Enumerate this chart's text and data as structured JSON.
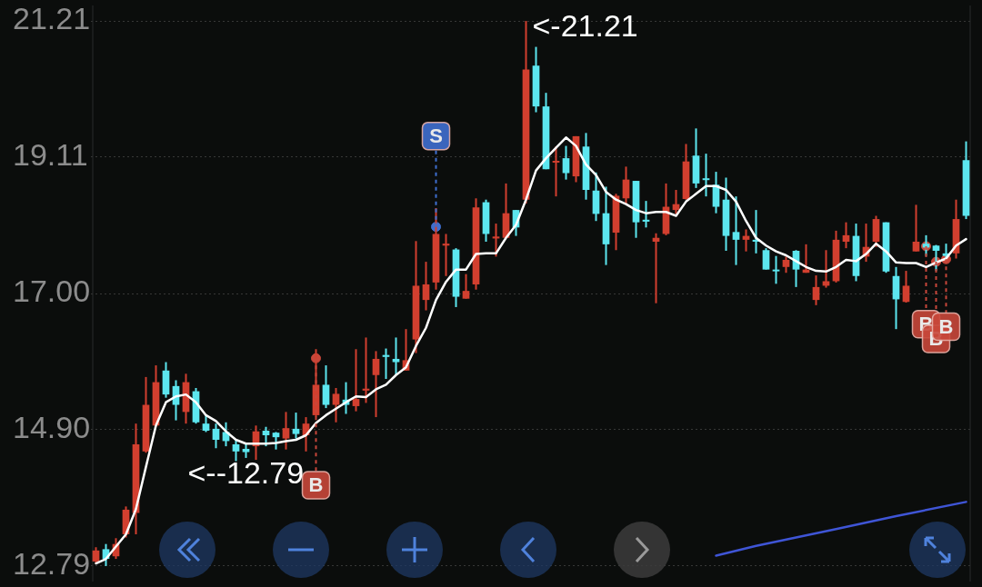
{
  "chart_data": {
    "type": "candlestick",
    "tick_labels": "y",
    "grid": "y",
    "ylim": [
      12.55,
      21.45
    ],
    "yticks": [
      12.79,
      {
        "value": 14.9,
        "label": "14.90"
      },
      {
        "value": 17,
        "label": "17.00"
      },
      19.11,
      21.21
    ],
    "annotations": [
      "<-21.21",
      "<--12.79"
    ],
    "categories": [
      null,
      null,
      null,
      null,
      null,
      null,
      null,
      null,
      null,
      null,
      null,
      null,
      null,
      null,
      null,
      null,
      null,
      null,
      null,
      null,
      null,
      null,
      null,
      null,
      null,
      null,
      null,
      null,
      null,
      null,
      null,
      null,
      null,
      null,
      null,
      null,
      null,
      null,
      null,
      null,
      null,
      null,
      null,
      null,
      null,
      null,
      null,
      null,
      null,
      null,
      null,
      null,
      null,
      null,
      null,
      null,
      null,
      null,
      null,
      null,
      null,
      null,
      null,
      null,
      null,
      null,
      null,
      null,
      null,
      null,
      null,
      null,
      null,
      null,
      null,
      null,
      null,
      null,
      null,
      null,
      null,
      null,
      null,
      null,
      null,
      null,
      null,
      null
    ],
    "ohlc": [
      [
        12.86,
        13.08,
        12.83,
        13.03
      ],
      [
        13.05,
        13.13,
        12.79,
        12.9
      ],
      [
        12.94,
        13.22,
        12.9,
        13.13
      ],
      [
        13.28,
        13.71,
        13.23,
        13.66
      ],
      [
        13.61,
        14.99,
        13.28,
        14.67
      ],
      [
        14.56,
        15.71,
        14.54,
        15.28
      ],
      [
        14.96,
        15.89,
        14.94,
        15.63
      ],
      [
        15.81,
        15.94,
        15.39,
        15.44
      ],
      [
        15.57,
        15.66,
        15.04,
        15.28
      ],
      [
        15.17,
        15.76,
        14.99,
        15.63
      ],
      [
        15.49,
        15.54,
        14.99,
        15.01
      ],
      [
        14.99,
        15.12,
        14.86,
        14.88
      ],
      [
        14.91,
        14.99,
        14.61,
        14.74
      ],
      [
        14.86,
        15.01,
        14.64,
        14.72
      ],
      [
        14.67,
        14.74,
        14.41,
        14.56
      ],
      [
        14.6,
        14.67,
        14.46,
        14.55
      ],
      [
        14.64,
        14.96,
        14.43,
        14.87
      ],
      [
        14.88,
        14.94,
        14.64,
        14.81
      ],
      [
        14.85,
        14.86,
        14.59,
        14.78
      ],
      [
        14.76,
        15.17,
        14.59,
        14.92
      ],
      [
        14.91,
        15.16,
        14.76,
        14.83
      ],
      [
        14.81,
        15.09,
        14.56,
        14.99
      ],
      [
        15.12,
        16.14,
        15.09,
        15.59
      ],
      [
        15.59,
        15.89,
        15.23,
        15.28
      ],
      [
        15.28,
        15.54,
        15.01,
        15.45
      ],
      [
        15.36,
        15.63,
        15.14,
        15.28
      ],
      [
        15.26,
        16.14,
        15.18,
        15.37
      ],
      [
        15.5,
        16.32,
        15.31,
        15.53
      ],
      [
        15.74,
        16.11,
        15.09,
        15.99
      ],
      [
        16.05,
        16.15,
        15.68,
        16.02
      ],
      [
        15.99,
        16.32,
        15.74,
        15.94
      ],
      [
        15.81,
        16.45,
        15.81,
        15.97
      ],
      [
        16.29,
        17.81,
        16.08,
        17.12
      ],
      [
        16.9,
        17.49,
        16.74,
        17.14
      ],
      [
        17.17,
        18.32,
        17.06,
        17.92
      ],
      [
        17.74,
        17.92,
        17.27,
        17.77
      ],
      [
        17.68,
        17.7,
        16.79,
        16.95
      ],
      [
        16.92,
        17.3,
        16.92,
        17.04
      ],
      [
        17.14,
        18.47,
        17.06,
        18.33
      ],
      [
        18.41,
        18.45,
        17.8,
        17.92
      ],
      [
        17.85,
        18.08,
        17.57,
        17.88
      ],
      [
        17.86,
        18.7,
        17.86,
        18.24
      ],
      [
        18.29,
        18.29,
        17.89,
        18.02
      ],
      [
        18.45,
        21.21,
        18.39,
        20.46
      ],
      [
        20.52,
        20.81,
        19.8,
        19.89
      ],
      [
        19.89,
        20.1,
        18.92,
        18.92
      ],
      [
        19.04,
        19.27,
        18.5,
        19.05
      ],
      [
        19.09,
        19.28,
        18.76,
        18.86
      ],
      [
        18.81,
        19.43,
        18.72,
        19.43
      ],
      [
        19.27,
        19.48,
        18.45,
        18.6
      ],
      [
        18.59,
        18.87,
        18.12,
        18.23
      ],
      [
        18.24,
        18.65,
        17.44,
        17.76
      ],
      [
        17.94,
        18.54,
        17.67,
        18.51
      ],
      [
        18.47,
        18.96,
        18.39,
        18.76
      ],
      [
        18.74,
        18.74,
        17.86,
        18.1
      ],
      [
        18.14,
        18.43,
        18.02,
        18.11
      ],
      [
        17.8,
        17.93,
        16.85,
        17.86
      ],
      [
        17.92,
        18.7,
        17.9,
        18.34
      ],
      [
        18.29,
        18.6,
        18.23,
        18.38
      ],
      [
        18.46,
        19.31,
        18.45,
        19.04
      ],
      [
        19.13,
        19.55,
        18.63,
        18.7
      ],
      [
        18.78,
        19.16,
        18.5,
        18.76
      ],
      [
        18.68,
        18.88,
        18.24,
        18.34
      ],
      [
        18.45,
        18.79,
        17.66,
        17.89
      ],
      [
        17.95,
        18.5,
        17.44,
        17.83
      ],
      [
        17.83,
        17.99,
        17.65,
        17.89
      ],
      [
        17.83,
        18.29,
        17.62,
        17.8
      ],
      [
        17.67,
        17.7,
        17.37,
        17.37
      ],
      [
        17.37,
        17.58,
        17.15,
        17.36
      ],
      [
        17.41,
        17.57,
        17.32,
        17.52
      ],
      [
        17.66,
        17.67,
        17.1,
        17.37
      ],
      [
        17.32,
        17.76,
        17.32,
        17.37
      ],
      [
        16.9,
        17.28,
        16.82,
        17.1
      ],
      [
        17.12,
        17.67,
        17.09,
        17.19
      ],
      [
        17.19,
        17.97,
        17.17,
        17.83
      ],
      [
        17.8,
        18.1,
        17.7,
        17.9
      ],
      [
        17.89,
        18.08,
        17.19,
        17.27
      ],
      [
        17.57,
        18.08,
        17.49,
        17.72
      ],
      [
        17.8,
        18.2,
        17.72,
        18.15
      ],
      [
        18.1,
        18.1,
        17.32,
        17.34
      ],
      [
        17.27,
        17.41,
        16.45,
        16.91
      ],
      [
        16.87,
        17.35,
        16.86,
        17.12
      ],
      [
        17.65,
        18.37,
        17.65,
        17.8
      ],
      [
        17.77,
        17.9,
        17.58,
        17.71
      ],
      [
        17.74,
        17.75,
        17.35,
        17.66
      ],
      [
        17.62,
        17.77,
        17.54,
        17.58
      ],
      [
        17.62,
        18.45,
        17.54,
        18.15
      ],
      [
        19.06,
        19.35,
        18.15,
        18.2
      ]
    ],
    "colors": [
      "#d23f2f",
      "#5ce6ef",
      "#d23f2f",
      "#d23f2f",
      "#d23f2f",
      "#d23f2f",
      "#d23f2f",
      "#5ce6ef",
      "#5ce6ef",
      "#d23f2f",
      "#5ce6ef",
      "#5ce6ef",
      "#5ce6ef",
      "#5ce6ef",
      "#5ce6ef",
      "#5ce6ef",
      "#d23f2f",
      "#5ce6ef",
      "#5ce6ef",
      "#d23f2f",
      "#5ce6ef",
      "#d23f2f",
      "#d23f2f",
      "#5ce6ef",
      "#d23f2f",
      "#5ce6ef",
      "#d23f2f",
      "#d23f2f",
      "#d23f2f",
      "#5ce6ef",
      "#5ce6ef",
      "#d23f2f",
      "#d23f2f",
      "#d23f2f",
      "#d23f2f",
      "#d23f2f",
      "#5ce6ef",
      "#d23f2f",
      "#d23f2f",
      "#5ce6ef",
      "#d23f2f",
      "#d23f2f",
      "#5ce6ef",
      "#d23f2f",
      "#5ce6ef",
      "#5ce6ef",
      "#d23f2f",
      "#5ce6ef",
      "#d23f2f",
      "#5ce6ef",
      "#5ce6ef",
      "#5ce6ef",
      "#d23f2f",
      "#d23f2f",
      "#5ce6ef",
      "#5ce6ef",
      "#d23f2f",
      "#d23f2f",
      "#d23f2f",
      "#d23f2f",
      "#5ce6ef",
      "#5ce6ef",
      "#5ce6ef",
      "#5ce6ef",
      "#5ce6ef",
      "#d23f2f",
      "#5ce6ef",
      "#5ce6ef",
      "#5ce6ef",
      "#d23f2f",
      "#5ce6ef",
      "#d23f2f",
      "#d23f2f",
      "#d23f2f",
      "#d23f2f",
      "#d23f2f",
      "#5ce6ef",
      "#d23f2f",
      "#d23f2f",
      "#5ce6ef",
      "#5ce6ef",
      "#d23f2f",
      "#d23f2f",
      "#5ce6ef",
      "#5ce6ef",
      "#5ce6ef",
      "#d23f2f",
      "#5ce6ef"
    ],
    "series": [
      {
        "type": "line",
        "color": "#ffffff",
        "values": [
          12.83,
          12.9,
          13.09,
          13.28,
          13.67,
          14.32,
          14.96,
          15.32,
          15.41,
          15.44,
          15.32,
          15.12,
          15.03,
          14.87,
          14.74,
          14.68,
          14.68,
          14.68,
          14.69,
          14.72,
          14.74,
          14.81,
          15.0,
          15.12,
          15.22,
          15.32,
          15.41,
          15.4,
          15.52,
          15.59,
          15.74,
          15.86,
          16.19,
          16.47,
          16.9,
          17.18,
          17.37,
          17.37,
          17.61,
          17.62,
          17.62,
          17.86,
          18.06,
          18.45,
          18.9,
          19.09,
          19.25,
          19.41,
          19.28,
          18.99,
          18.83,
          18.57,
          18.45,
          18.38,
          18.29,
          18.24,
          18.26,
          18.26,
          18.2,
          18.42,
          18.54,
          18.66,
          18.66,
          18.6,
          18.42,
          18.12,
          17.86,
          17.74,
          17.65,
          17.59,
          17.5,
          17.41,
          17.35,
          17.34,
          17.41,
          17.52,
          17.5,
          17.61,
          17.77,
          17.65,
          17.48,
          17.47,
          17.47,
          17.41,
          17.48,
          17.54,
          17.74,
          17.84
        ]
      },
      {
        "type": "line",
        "color": "#3f55d6",
        "values": [
          null,
          null,
          null,
          null,
          null,
          null,
          null,
          null,
          null,
          null,
          null,
          null,
          null,
          null,
          null,
          null,
          null,
          null,
          null,
          null,
          null,
          null,
          null,
          null,
          null,
          null,
          null,
          null,
          null,
          null,
          null,
          null,
          null,
          null,
          null,
          null,
          null,
          null,
          null,
          null,
          null,
          null,
          null,
          null,
          null,
          null,
          null,
          null,
          null,
          null,
          null,
          null,
          null,
          null,
          null,
          null,
          null,
          null,
          null,
          null,
          null,
          null,
          12.95,
          null,
          null,
          null,
          13.1,
          null,
          null,
          null,
          null,
          null,
          null,
          null,
          13.36,
          null,
          null,
          null,
          null,
          null,
          13.56,
          null,
          null,
          null,
          null,
          null,
          null,
          13.78
        ]
      },
      {
        "type": "scatter",
        "name": "B",
        "color": "#c8473a",
        "marker": "circle",
        "values": [
          null,
          null,
          null,
          null,
          null,
          null,
          null,
          null,
          null,
          null,
          null,
          null,
          null,
          null,
          null,
          null,
          null,
          null,
          null,
          null,
          null,
          null,
          16.0,
          null,
          null,
          null,
          null,
          null,
          null,
          null,
          null,
          null,
          null,
          null,
          null,
          null,
          null,
          null,
          null,
          null,
          null,
          null,
          null,
          null,
          null,
          null,
          null,
          null,
          null,
          null,
          null,
          null,
          null,
          null,
          null,
          null,
          null,
          null,
          null,
          null,
          null,
          null,
          null,
          null,
          null,
          null,
          null,
          null,
          null,
          null,
          null,
          null,
          null,
          null,
          null,
          null,
          null,
          null,
          null,
          null,
          null,
          null,
          null,
          17.73,
          17.49,
          17.53,
          null,
          null
        ]
      },
      {
        "type": "scatter",
        "name": "S",
        "color": "#3f6fd0",
        "marker": "circle",
        "values": [
          null,
          null,
          null,
          null,
          null,
          null,
          null,
          null,
          null,
          null,
          null,
          null,
          null,
          null,
          null,
          null,
          null,
          null,
          null,
          null,
          null,
          null,
          null,
          null,
          null,
          null,
          null,
          null,
          null,
          null,
          null,
          null,
          null,
          null,
          18.03,
          null,
          null,
          null,
          null,
          null,
          null,
          null,
          null,
          null,
          null,
          null,
          null,
          null,
          null,
          null,
          null,
          null,
          null,
          null,
          null,
          null,
          null,
          null,
          null,
          null,
          null,
          null,
          null,
          null,
          null,
          null,
          null,
          null,
          null,
          null,
          null,
          null,
          null,
          null,
          null,
          null,
          null,
          null,
          null,
          null,
          null,
          null,
          null,
          null,
          null,
          null,
          null,
          null
        ]
      }
    ]
  }
}
